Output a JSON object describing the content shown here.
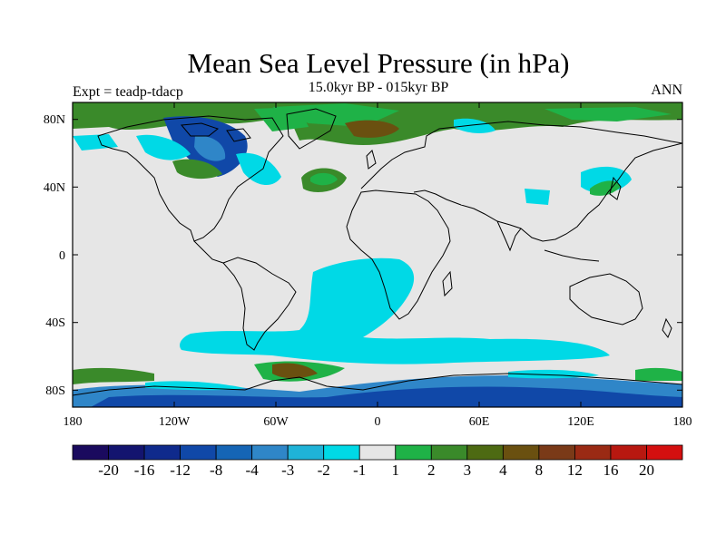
{
  "title": "Mean Sea Level Pressure (in hPa)",
  "subtitle": "15.0kyr BP - 015kyr BP",
  "experiment": "Expt = teadp-tdacp",
  "season": "ANN",
  "map": {
    "projection": "cylindrical equidistant",
    "lon_range": [
      -180,
      180
    ],
    "lat_range": [
      -90,
      90
    ],
    "ytick_labels": [
      "80N",
      "40N",
      "0",
      "40S",
      "80S"
    ],
    "xtick_labels": [
      "180",
      "120W",
      "60W",
      "0",
      "60E",
      "120E",
      "180"
    ],
    "background_class_color": "#e6e6e6"
  },
  "colorbar": {
    "colors": [
      "#1a0a5e",
      "#13146f",
      "#0f2a8c",
      "#1048a8",
      "#1565b5",
      "#2f86c8",
      "#1fb3d8",
      "#00d9e6",
      "#e6e6e6",
      "#1fb247",
      "#3a8a2a",
      "#4d6a12",
      "#6a5010",
      "#7a3a18",
      "#9a2a14",
      "#b81810",
      "#d40f0f"
    ],
    "labels": [
      "-20",
      "-16",
      "-12",
      "-8",
      "-4",
      "-3",
      "-2",
      "-1",
      "1",
      "2",
      "3",
      "4",
      "8",
      "12",
      "16",
      "20"
    ]
  }
}
